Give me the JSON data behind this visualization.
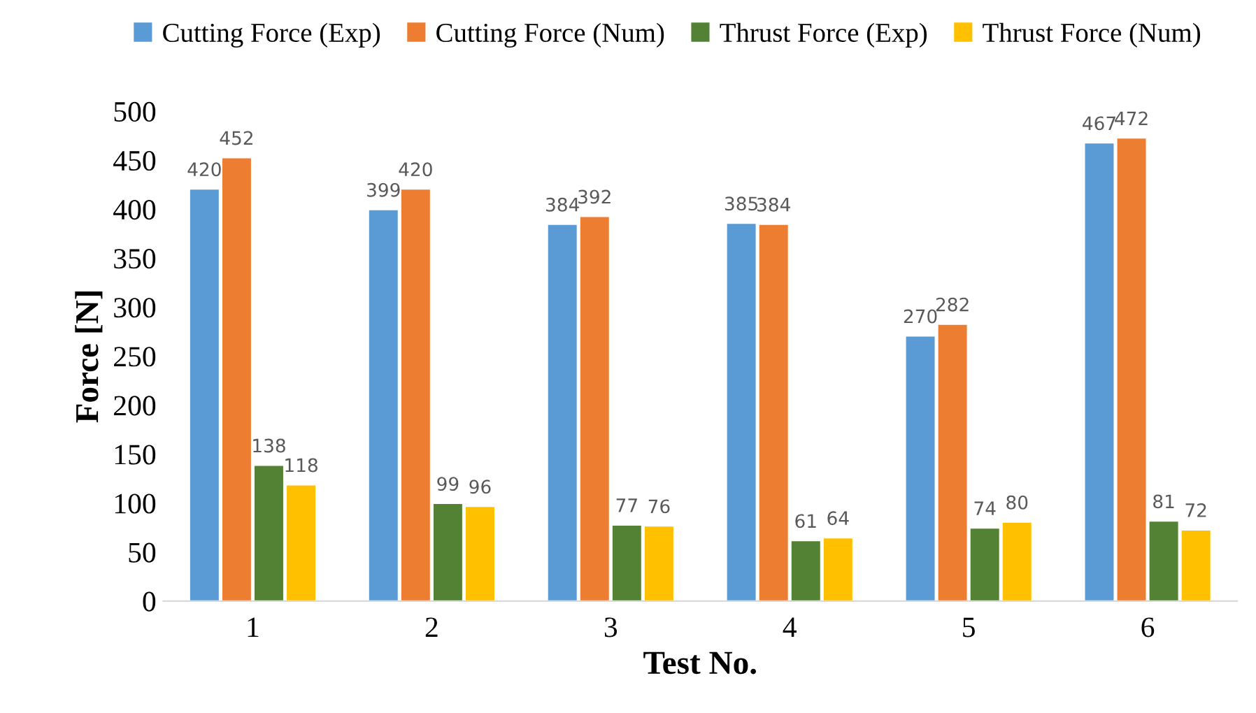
{
  "chart_data": {
    "type": "bar",
    "xlabel": "Test No.",
    "ylabel": "Force [N]",
    "categories": [
      "1",
      "2",
      "3",
      "4",
      "5",
      "6"
    ],
    "series": [
      {
        "name": "Cutting Force (Exp)",
        "color": "#5b9bd5",
        "values": [
          420,
          399,
          384,
          385,
          270,
          467
        ]
      },
      {
        "name": "Cutting Force (Num)",
        "color": "#ed7d31",
        "values": [
          452,
          420,
          392,
          384,
          282,
          472
        ]
      },
      {
        "name": "Thrust Force (Exp)",
        "color": "#548235",
        "values": [
          138,
          99,
          77,
          61,
          74,
          81
        ]
      },
      {
        "name": "Thrust Force (Num)",
        "color": "#ffc000",
        "values": [
          118,
          96,
          76,
          64,
          80,
          72
        ]
      }
    ],
    "ylim": [
      0,
      500
    ],
    "yticks": [
      0,
      50,
      100,
      150,
      200,
      250,
      300,
      350,
      400,
      450,
      500
    ],
    "grid": false,
    "legend": "top",
    "data_labels": true
  }
}
